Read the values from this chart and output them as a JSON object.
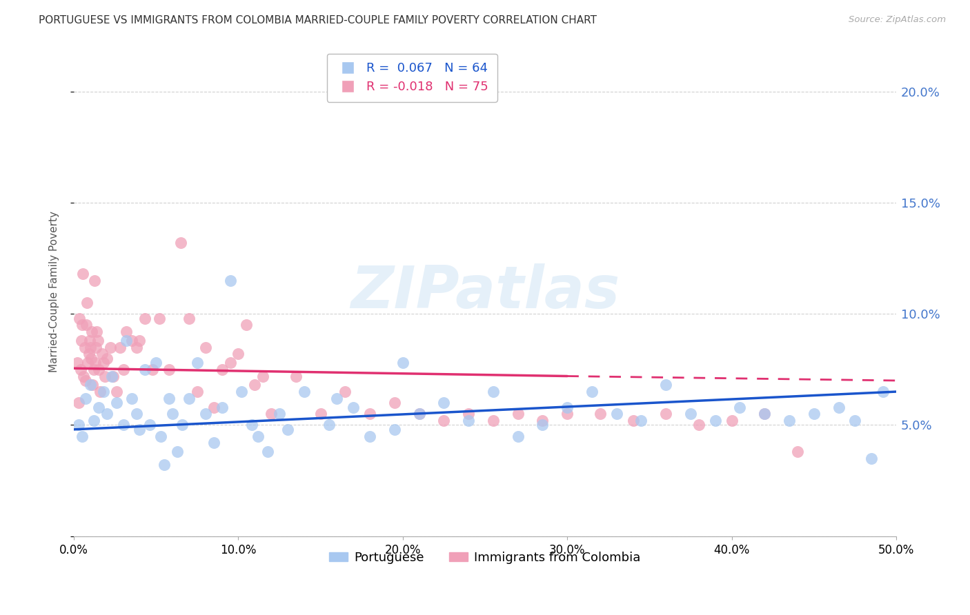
{
  "title": "PORTUGUESE VS IMMIGRANTS FROM COLOMBIA MARRIED-COUPLE FAMILY POVERTY CORRELATION CHART",
  "source": "Source: ZipAtlas.com",
  "ylabel": "Married-Couple Family Poverty",
  "legend_label_blue": "Portuguese",
  "legend_label_pink": "Immigrants from Colombia",
  "blue_color": "#a8c8f0",
  "pink_color": "#f0a0b8",
  "blue_line_color": "#1a55cc",
  "pink_line_color": "#e03070",
  "watermark": "ZIPatlas",
  "xlim": [
    0.0,
    50.0
  ],
  "ylim": [
    0.0,
    22.0
  ],
  "yticks_right": [
    5.0,
    10.0,
    15.0,
    20.0
  ],
  "xticks": [
    0.0,
    10.0,
    20.0,
    30.0,
    40.0,
    50.0
  ],
  "blue_r": 0.067,
  "blue_n": 64,
  "pink_r": -0.018,
  "pink_n": 75,
  "blue_points": [
    [
      0.3,
      5.0
    ],
    [
      0.5,
      4.5
    ],
    [
      0.7,
      6.2
    ],
    [
      1.0,
      6.8
    ],
    [
      1.2,
      5.2
    ],
    [
      1.5,
      5.8
    ],
    [
      1.8,
      6.5
    ],
    [
      2.0,
      5.5
    ],
    [
      2.3,
      7.2
    ],
    [
      2.6,
      6.0
    ],
    [
      3.0,
      5.0
    ],
    [
      3.2,
      8.8
    ],
    [
      3.5,
      6.2
    ],
    [
      3.8,
      5.5
    ],
    [
      4.0,
      4.8
    ],
    [
      4.3,
      7.5
    ],
    [
      4.6,
      5.0
    ],
    [
      5.0,
      7.8
    ],
    [
      5.3,
      4.5
    ],
    [
      5.5,
      3.2
    ],
    [
      5.8,
      6.2
    ],
    [
      6.0,
      5.5
    ],
    [
      6.3,
      3.8
    ],
    [
      6.6,
      5.0
    ],
    [
      7.0,
      6.2
    ],
    [
      7.5,
      7.8
    ],
    [
      8.0,
      5.5
    ],
    [
      8.5,
      4.2
    ],
    [
      9.0,
      5.8
    ],
    [
      9.5,
      11.5
    ],
    [
      10.2,
      6.5
    ],
    [
      10.8,
      5.0
    ],
    [
      11.2,
      4.5
    ],
    [
      11.8,
      3.8
    ],
    [
      12.5,
      5.5
    ],
    [
      13.0,
      4.8
    ],
    [
      14.0,
      6.5
    ],
    [
      15.5,
      5.0
    ],
    [
      17.0,
      5.8
    ],
    [
      18.0,
      4.5
    ],
    [
      19.5,
      4.8
    ],
    [
      21.0,
      5.5
    ],
    [
      22.5,
      6.0
    ],
    [
      24.0,
      5.2
    ],
    [
      25.5,
      6.5
    ],
    [
      27.0,
      4.5
    ],
    [
      28.5,
      5.0
    ],
    [
      30.0,
      5.8
    ],
    [
      31.5,
      6.5
    ],
    [
      33.0,
      5.5
    ],
    [
      34.5,
      5.2
    ],
    [
      36.0,
      6.8
    ],
    [
      37.5,
      5.5
    ],
    [
      39.0,
      5.2
    ],
    [
      40.5,
      5.8
    ],
    [
      42.0,
      5.5
    ],
    [
      43.5,
      5.2
    ],
    [
      45.0,
      5.5
    ],
    [
      46.5,
      5.8
    ],
    [
      47.5,
      5.2
    ],
    [
      48.5,
      3.5
    ],
    [
      49.2,
      6.5
    ],
    [
      20.0,
      7.8
    ],
    [
      16.0,
      6.2
    ]
  ],
  "pink_points": [
    [
      0.2,
      7.8
    ],
    [
      0.3,
      6.0
    ],
    [
      0.35,
      9.8
    ],
    [
      0.4,
      7.5
    ],
    [
      0.45,
      8.8
    ],
    [
      0.5,
      9.5
    ],
    [
      0.55,
      11.8
    ],
    [
      0.6,
      7.2
    ],
    [
      0.65,
      8.5
    ],
    [
      0.7,
      7.0
    ],
    [
      0.75,
      9.5
    ],
    [
      0.8,
      10.5
    ],
    [
      0.85,
      7.8
    ],
    [
      0.9,
      8.2
    ],
    [
      0.95,
      8.8
    ],
    [
      1.0,
      8.5
    ],
    [
      1.05,
      8.0
    ],
    [
      1.1,
      9.2
    ],
    [
      1.15,
      6.8
    ],
    [
      1.2,
      7.5
    ],
    [
      1.25,
      11.5
    ],
    [
      1.3,
      7.8
    ],
    [
      1.35,
      8.5
    ],
    [
      1.4,
      9.2
    ],
    [
      1.45,
      8.8
    ],
    [
      1.5,
      7.5
    ],
    [
      1.6,
      6.5
    ],
    [
      1.7,
      8.2
    ],
    [
      1.8,
      7.8
    ],
    [
      1.9,
      7.2
    ],
    [
      2.0,
      8.0
    ],
    [
      2.2,
      8.5
    ],
    [
      2.4,
      7.2
    ],
    [
      2.6,
      6.5
    ],
    [
      2.8,
      8.5
    ],
    [
      3.0,
      7.5
    ],
    [
      3.2,
      9.2
    ],
    [
      3.5,
      8.8
    ],
    [
      3.8,
      8.5
    ],
    [
      4.0,
      8.8
    ],
    [
      4.3,
      9.8
    ],
    [
      4.8,
      7.5
    ],
    [
      5.2,
      9.8
    ],
    [
      5.8,
      7.5
    ],
    [
      6.5,
      13.2
    ],
    [
      7.0,
      9.8
    ],
    [
      7.5,
      6.5
    ],
    [
      8.0,
      8.5
    ],
    [
      8.5,
      5.8
    ],
    [
      9.0,
      7.5
    ],
    [
      9.5,
      7.8
    ],
    [
      10.0,
      8.2
    ],
    [
      10.5,
      9.5
    ],
    [
      11.0,
      6.8
    ],
    [
      11.5,
      7.2
    ],
    [
      12.0,
      5.5
    ],
    [
      13.5,
      7.2
    ],
    [
      15.0,
      5.5
    ],
    [
      16.5,
      6.5
    ],
    [
      18.0,
      5.5
    ],
    [
      19.5,
      6.0
    ],
    [
      21.0,
      5.5
    ],
    [
      22.5,
      5.2
    ],
    [
      24.0,
      5.5
    ],
    [
      25.5,
      5.2
    ],
    [
      27.0,
      5.5
    ],
    [
      28.5,
      5.2
    ],
    [
      30.0,
      5.5
    ],
    [
      32.0,
      5.5
    ],
    [
      34.0,
      5.2
    ],
    [
      36.0,
      5.5
    ],
    [
      38.0,
      5.0
    ],
    [
      40.0,
      5.2
    ],
    [
      42.0,
      5.5
    ],
    [
      44.0,
      3.8
    ]
  ]
}
